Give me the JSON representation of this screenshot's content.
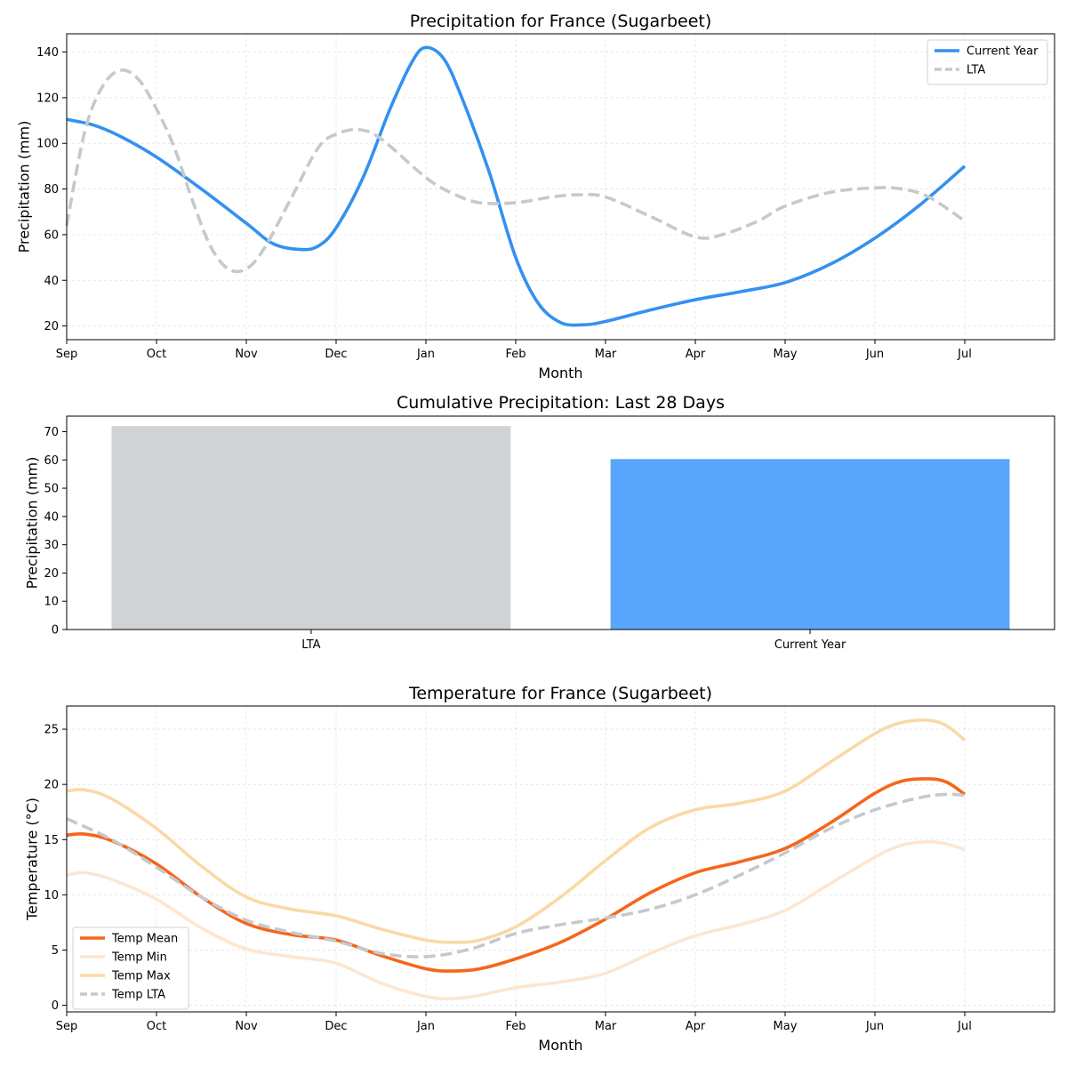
{
  "chart_data": [
    {
      "type": "line",
      "title": "Precipitation for France (Sugarbeet)",
      "xlabel": "Month",
      "ylabel": "Precipitation (mm)",
      "x_ticks": [
        "Sep",
        "Oct",
        "Nov",
        "Dec",
        "Jan",
        "Feb",
        "Mar",
        "Apr",
        "May",
        "Jun",
        "Jul"
      ],
      "xlim": [
        0,
        11
      ],
      "ylim": [
        14,
        148
      ],
      "y_ticks": [
        "20",
        "40",
        "60",
        "80",
        "100",
        "120",
        "140"
      ],
      "grid": true,
      "legend": "upper-right",
      "series": [
        {
          "name": "Current Year",
          "color": "#3391f0",
          "style": "solid",
          "points": [
            [
              0,
              110.5
            ],
            [
              0.3,
              108
            ],
            [
              0.6,
              103
            ],
            [
              1,
              94
            ],
            [
              1.5,
              80
            ],
            [
              2,
              65
            ],
            [
              2.3,
              56
            ],
            [
              2.6,
              53.5
            ],
            [
              2.8,
              55
            ],
            [
              3,
              63
            ],
            [
              3.3,
              85
            ],
            [
              3.6,
              115
            ],
            [
              3.85,
              136
            ],
            [
              4,
              142
            ],
            [
              4.2,
              137
            ],
            [
              4.4,
              120
            ],
            [
              4.7,
              88
            ],
            [
              5,
              50
            ],
            [
              5.25,
              30
            ],
            [
              5.5,
              21.5
            ],
            [
              5.75,
              20.5
            ],
            [
              6,
              22
            ],
            [
              6.5,
              27
            ],
            [
              7,
              31.5
            ],
            [
              7.5,
              35
            ],
            [
              8,
              39
            ],
            [
              8.5,
              47
            ],
            [
              9,
              58.5
            ],
            [
              9.5,
              73
            ],
            [
              10,
              90
            ]
          ]
        },
        {
          "name": "LTA",
          "color": "#c6c9cc",
          "style": "dashed",
          "points": [
            [
              0,
              64
            ],
            [
              0.2,
              105
            ],
            [
              0.4,
              125
            ],
            [
              0.6,
              132
            ],
            [
              0.8,
              128
            ],
            [
              1,
              115
            ],
            [
              1.2,
              98
            ],
            [
              1.4,
              75
            ],
            [
              1.6,
              55
            ],
            [
              1.8,
              45
            ],
            [
              2,
              45
            ],
            [
              2.2,
              54
            ],
            [
              2.5,
              76
            ],
            [
              2.8,
              98
            ],
            [
              3,
              104
            ],
            [
              3.25,
              106
            ],
            [
              3.5,
              102
            ],
            [
              4,
              85
            ],
            [
              4.3,
              78
            ],
            [
              4.6,
              74
            ],
            [
              5,
              74
            ],
            [
              5.4,
              76.5
            ],
            [
              5.7,
              77.5
            ],
            [
              6,
              76.5
            ],
            [
              6.5,
              68
            ],
            [
              7,
              59
            ],
            [
              7.3,
              60
            ],
            [
              7.7,
              66
            ],
            [
              8,
              72.5
            ],
            [
              8.5,
              78.5
            ],
            [
              9,
              80.5
            ],
            [
              9.3,
              80
            ],
            [
              9.6,
              76.5
            ],
            [
              10,
              66
            ]
          ]
        }
      ]
    },
    {
      "type": "bar",
      "title": "Cumulative Precipitation: Last 28 Days",
      "xlabel": "",
      "ylabel": "Precipitation (mm)",
      "categories": [
        "LTA",
        "Current Year"
      ],
      "values": [
        72,
        60.3
      ],
      "colors": [
        "#d0d3d6",
        "#58a6fb"
      ],
      "ylim": [
        0,
        75.5
      ],
      "y_ticks": [
        "0",
        "10",
        "20",
        "30",
        "40",
        "50",
        "60",
        "70"
      ],
      "grid": false
    },
    {
      "type": "line",
      "title": "Temperature for France (Sugarbeet)",
      "xlabel": "Month",
      "ylabel": "Temperature (°C)",
      "x_ticks": [
        "Sep",
        "Oct",
        "Nov",
        "Dec",
        "Jan",
        "Feb",
        "Mar",
        "Apr",
        "May",
        "Jun",
        "Jul"
      ],
      "xlim": [
        0,
        11
      ],
      "ylim": [
        -0.6,
        27.1
      ],
      "y_ticks": [
        "0",
        "5",
        "10",
        "15",
        "20",
        "25"
      ],
      "grid": true,
      "legend": "lower-left",
      "series": [
        {
          "name": "Temp Mean",
          "color": "#f5661b",
          "style": "solid",
          "points": [
            [
              0,
              15.4
            ],
            [
              0.2,
              15.5
            ],
            [
              0.5,
              14.9
            ],
            [
              1,
              12.8
            ],
            [
              1.5,
              9.8
            ],
            [
              2,
              7.4
            ],
            [
              2.5,
              6.4
            ],
            [
              3,
              5.9
            ],
            [
              3.5,
              4.5
            ],
            [
              4,
              3.3
            ],
            [
              4.3,
              3.1
            ],
            [
              4.6,
              3.3
            ],
            [
              5,
              4.2
            ],
            [
              5.5,
              5.7
            ],
            [
              6,
              7.8
            ],
            [
              6.5,
              10.2
            ],
            [
              7,
              12
            ],
            [
              7.5,
              13
            ],
            [
              8,
              14.2
            ],
            [
              8.5,
              16.5
            ],
            [
              9,
              19.2
            ],
            [
              9.3,
              20.3
            ],
            [
              9.6,
              20.5
            ],
            [
              9.8,
              20.2
            ],
            [
              10,
              19.1
            ]
          ]
        },
        {
          "name": "Temp Min",
          "color": "#fde6d1",
          "style": "solid",
          "points": [
            [
              0,
              11.8
            ],
            [
              0.2,
              12
            ],
            [
              0.5,
              11.4
            ],
            [
              1,
              9.6
            ],
            [
              1.5,
              7
            ],
            [
              2,
              5.1
            ],
            [
              2.5,
              4.4
            ],
            [
              3,
              3.8
            ],
            [
              3.5,
              2
            ],
            [
              4,
              0.8
            ],
            [
              4.3,
              0.6
            ],
            [
              4.6,
              0.9
            ],
            [
              5,
              1.6
            ],
            [
              5.5,
              2.1
            ],
            [
              6,
              2.9
            ],
            [
              6.5,
              4.7
            ],
            [
              7,
              6.3
            ],
            [
              7.5,
              7.3
            ],
            [
              8,
              8.6
            ],
            [
              8.5,
              11
            ],
            [
              9,
              13.4
            ],
            [
              9.3,
              14.5
            ],
            [
              9.6,
              14.8
            ],
            [
              9.8,
              14.6
            ],
            [
              10,
              14.1
            ]
          ]
        },
        {
          "name": "Temp Max",
          "color": "#fad9a6",
          "style": "solid",
          "points": [
            [
              0,
              19.4
            ],
            [
              0.2,
              19.5
            ],
            [
              0.5,
              18.7
            ],
            [
              1,
              16
            ],
            [
              1.5,
              12.6
            ],
            [
              2,
              9.8
            ],
            [
              2.5,
              8.7
            ],
            [
              3,
              8.1
            ],
            [
              3.5,
              6.9
            ],
            [
              4,
              5.9
            ],
            [
              4.3,
              5.7
            ],
            [
              4.6,
              5.9
            ],
            [
              5,
              7.1
            ],
            [
              5.5,
              9.8
            ],
            [
              6,
              13.1
            ],
            [
              6.5,
              16.1
            ],
            [
              7,
              17.7
            ],
            [
              7.5,
              18.3
            ],
            [
              8,
              19.4
            ],
            [
              8.5,
              22
            ],
            [
              9,
              24.6
            ],
            [
              9.3,
              25.6
            ],
            [
              9.6,
              25.8
            ],
            [
              9.8,
              25.3
            ],
            [
              10,
              24
            ]
          ]
        },
        {
          "name": "Temp LTA",
          "color": "#c6c9cc",
          "style": "dashed",
          "points": [
            [
              0,
              16.9
            ],
            [
              0.5,
              15
            ],
            [
              1,
              12.5
            ],
            [
              1.5,
              9.8
            ],
            [
              2,
              7.7
            ],
            [
              2.5,
              6.6
            ],
            [
              3,
              5.8
            ],
            [
              3.5,
              4.7
            ],
            [
              4,
              4.4
            ],
            [
              4.5,
              5.1
            ],
            [
              5,
              6.5
            ],
            [
              5.5,
              7.3
            ],
            [
              6,
              7.9
            ],
            [
              6.5,
              8.7
            ],
            [
              7,
              10
            ],
            [
              7.5,
              11.8
            ],
            [
              8,
              13.8
            ],
            [
              8.5,
              16
            ],
            [
              9,
              17.7
            ],
            [
              9.5,
              18.8
            ],
            [
              9.8,
              19.1
            ],
            [
              10,
              19
            ]
          ]
        }
      ]
    }
  ]
}
